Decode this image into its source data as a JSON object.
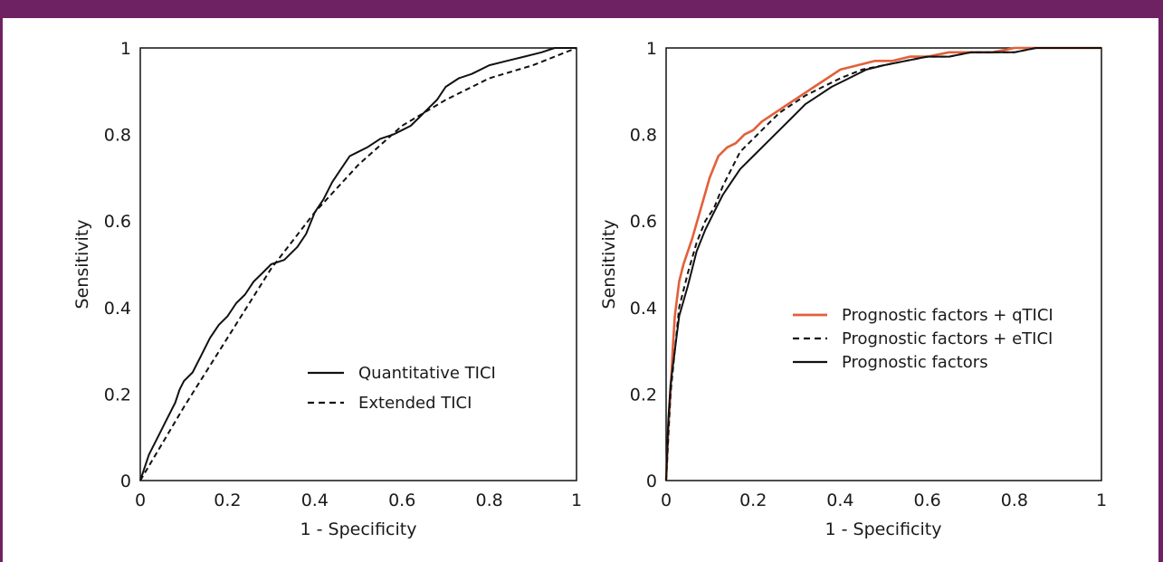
{
  "colors": {
    "frame": "#6e2263",
    "qtici_orange": "#e2603a",
    "line_black": "#111111"
  },
  "chart_data": [
    {
      "type": "line",
      "xlabel": "1 - Specificity",
      "ylabel": "Sensitivity",
      "xlim": [
        0,
        1
      ],
      "ylim": [
        0,
        1
      ],
      "x_ticks": [
        "0",
        "0.2",
        "0.4",
        "0.6",
        "0.8",
        "1"
      ],
      "y_ticks": [
        "0",
        "0.2",
        "0.4",
        "0.6",
        "0.8",
        "1"
      ],
      "grid": false,
      "legend_position": "bottom-right",
      "series": [
        {
          "name": "Quantitative TICI",
          "style": "solid",
          "color": "#111111",
          "x": [
            0,
            0.02,
            0.04,
            0.06,
            0.08,
            0.09,
            0.1,
            0.12,
            0.14,
            0.16,
            0.18,
            0.2,
            0.22,
            0.24,
            0.26,
            0.28,
            0.3,
            0.33,
            0.36,
            0.38,
            0.4,
            0.42,
            0.44,
            0.46,
            0.48,
            0.5,
            0.52,
            0.55,
            0.58,
            0.6,
            0.62,
            0.64,
            0.66,
            0.68,
            0.7,
            0.73,
            0.76,
            0.8,
            0.84,
            0.88,
            0.92,
            0.95,
            1
          ],
          "y": [
            0,
            0.06,
            0.1,
            0.14,
            0.18,
            0.21,
            0.23,
            0.25,
            0.29,
            0.33,
            0.36,
            0.38,
            0.41,
            0.43,
            0.46,
            0.48,
            0.5,
            0.51,
            0.54,
            0.57,
            0.62,
            0.65,
            0.69,
            0.72,
            0.75,
            0.76,
            0.77,
            0.79,
            0.8,
            0.81,
            0.82,
            0.84,
            0.86,
            0.88,
            0.91,
            0.93,
            0.94,
            0.96,
            0.97,
            0.98,
            0.99,
            1,
            1
          ]
        },
        {
          "name": "Extended TICI",
          "style": "dashed",
          "color": "#111111",
          "x": [
            0,
            0.1,
            0.2,
            0.3,
            0.4,
            0.5,
            0.6,
            0.7,
            0.8,
            0.9,
            1
          ],
          "y": [
            0,
            0.17,
            0.33,
            0.49,
            0.62,
            0.73,
            0.82,
            0.88,
            0.93,
            0.96,
            1
          ]
        }
      ]
    },
    {
      "type": "line",
      "xlabel": "1 - Specificity",
      "ylabel": "Sensitivity",
      "xlim": [
        0,
        1
      ],
      "ylim": [
        0,
        1
      ],
      "x_ticks": [
        "0",
        "0.2",
        "0.4",
        "0.6",
        "0.8",
        "1"
      ],
      "y_ticks": [
        "0",
        "0.2",
        "0.4",
        "0.6",
        "0.8",
        "1"
      ],
      "grid": false,
      "legend_position": "center-right",
      "series": [
        {
          "name": "Prognostic factors + qTICI",
          "style": "solid",
          "color": "#e2603a",
          "x": [
            0,
            0.005,
            0.01,
            0.015,
            0.02,
            0.03,
            0.04,
            0.06,
            0.08,
            0.1,
            0.12,
            0.14,
            0.16,
            0.18,
            0.2,
            0.22,
            0.25,
            0.28,
            0.31,
            0.34,
            0.37,
            0.4,
            0.44,
            0.48,
            0.52,
            0.56,
            0.6,
            0.65,
            0.7,
            0.75,
            0.8,
            0.85,
            0.9,
            1
          ],
          "y": [
            0,
            0.12,
            0.2,
            0.3,
            0.38,
            0.46,
            0.5,
            0.56,
            0.63,
            0.7,
            0.75,
            0.77,
            0.78,
            0.8,
            0.81,
            0.83,
            0.85,
            0.87,
            0.89,
            0.91,
            0.93,
            0.95,
            0.96,
            0.97,
            0.97,
            0.98,
            0.98,
            0.99,
            0.99,
            0.99,
            1,
            1,
            1,
            1
          ]
        },
        {
          "name": "Prognostic factors + eTICI",
          "style": "dashed",
          "color": "#111111",
          "x": [
            0,
            0.005,
            0.01,
            0.02,
            0.03,
            0.05,
            0.07,
            0.09,
            0.11,
            0.13,
            0.15,
            0.17,
            0.2,
            0.23,
            0.26,
            0.29,
            0.32,
            0.36,
            0.4,
            0.45,
            0.5,
            0.55,
            0.6,
            0.65,
            0.7,
            0.75,
            0.8,
            0.85,
            0.9,
            1
          ],
          "y": [
            0,
            0.1,
            0.2,
            0.3,
            0.4,
            0.48,
            0.55,
            0.6,
            0.63,
            0.68,
            0.72,
            0.76,
            0.79,
            0.82,
            0.85,
            0.87,
            0.89,
            0.91,
            0.93,
            0.95,
            0.96,
            0.97,
            0.98,
            0.98,
            0.99,
            0.99,
            0.99,
            1,
            1,
            1
          ]
        },
        {
          "name": "Prognostic factors",
          "style": "solid",
          "color": "#111111",
          "x": [
            0,
            0.005,
            0.01,
            0.02,
            0.03,
            0.05,
            0.07,
            0.09,
            0.11,
            0.13,
            0.15,
            0.17,
            0.2,
            0.23,
            0.26,
            0.29,
            0.32,
            0.35,
            0.38,
            0.42,
            0.46,
            0.5,
            0.55,
            0.6,
            0.65,
            0.7,
            0.75,
            0.8,
            0.85,
            0.9,
            1
          ],
          "y": [
            0,
            0.14,
            0.22,
            0.3,
            0.38,
            0.45,
            0.53,
            0.58,
            0.62,
            0.66,
            0.69,
            0.72,
            0.75,
            0.78,
            0.81,
            0.84,
            0.87,
            0.89,
            0.91,
            0.93,
            0.95,
            0.96,
            0.97,
            0.98,
            0.98,
            0.99,
            0.99,
            0.99,
            1,
            1,
            1
          ]
        }
      ]
    }
  ]
}
